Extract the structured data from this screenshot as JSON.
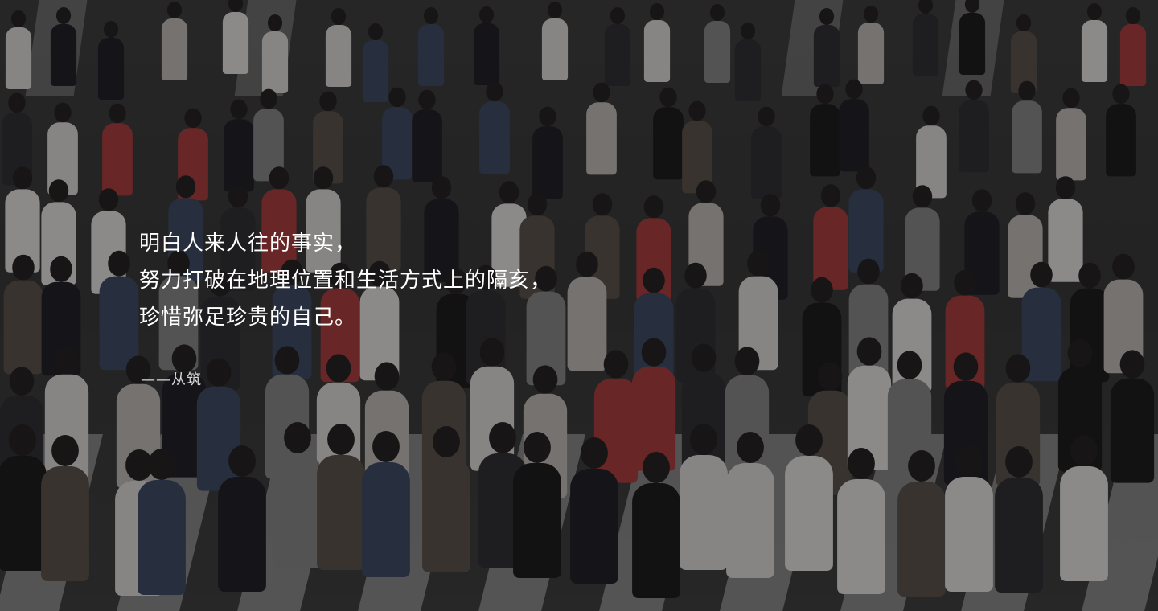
{
  "image": {
    "subject": "crowd-crossing",
    "palette": {
      "road": "#3a3a3a",
      "stripe": "#cfcfcf",
      "overlay": "#0f0f0f",
      "text": "#ffffff",
      "attribution": "#d8d8d8"
    }
  },
  "quote": {
    "lines": [
      "明白人来人往的事实，",
      "努力打破在地理位置和生活方式上的隔亥，",
      "珍惜弥足珍贵的自己。"
    ],
    "attribution": "——从筑"
  }
}
